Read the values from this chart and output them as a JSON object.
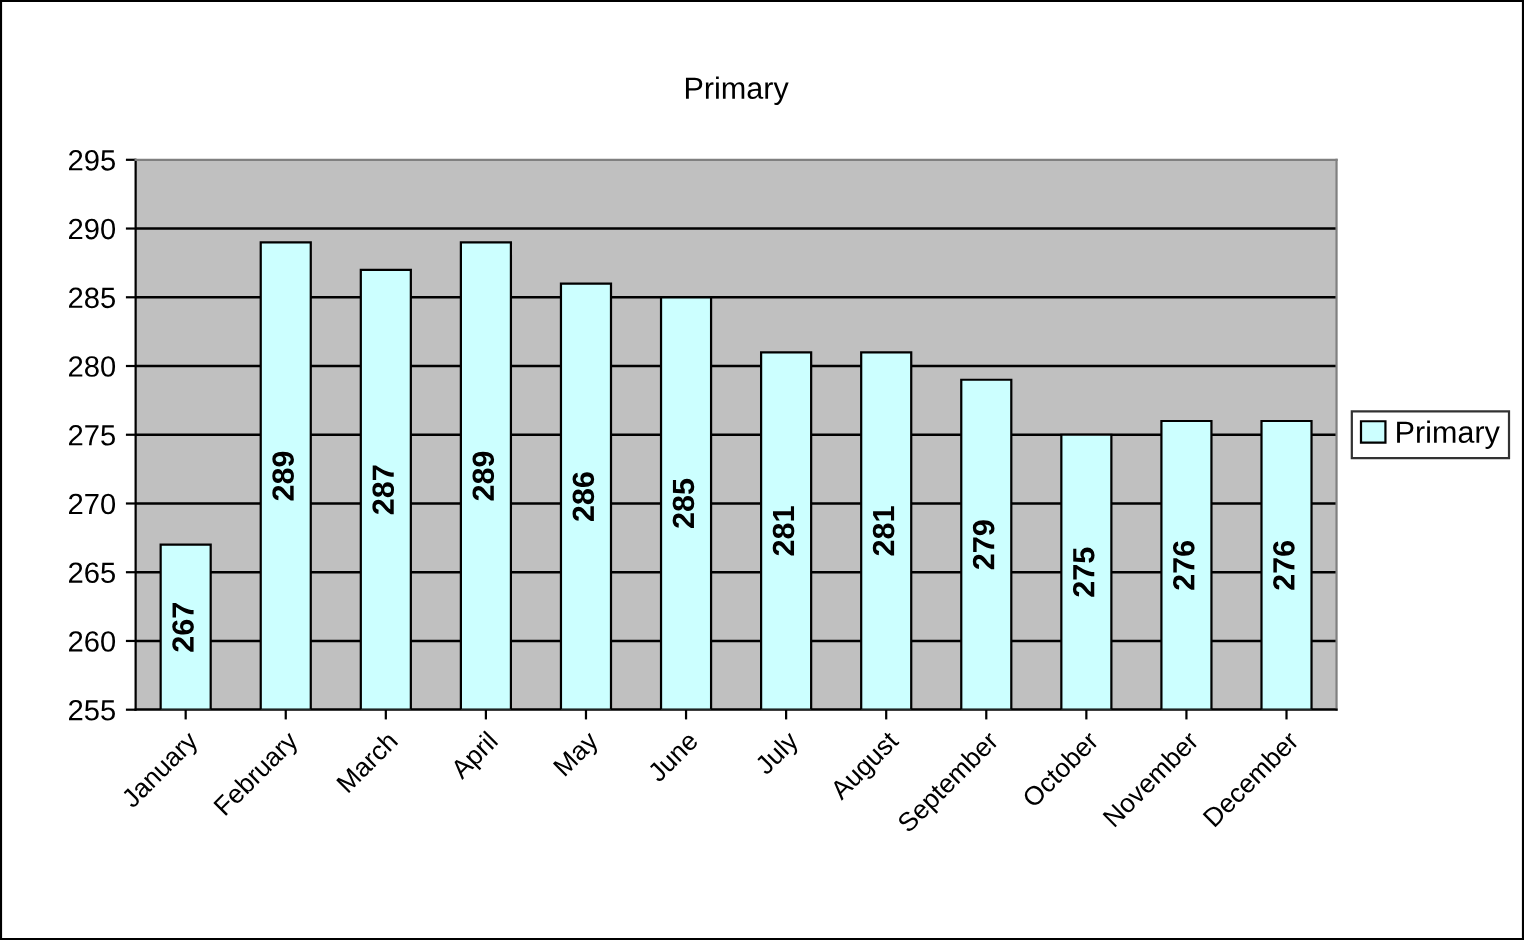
{
  "chart_data": {
    "type": "bar",
    "title": "Primary",
    "categories": [
      "January",
      "February",
      "March",
      "April",
      "May",
      "June",
      "July",
      "August",
      "September",
      "October",
      "November",
      "December"
    ],
    "series": [
      {
        "name": "Primary",
        "color": "#ccffff",
        "values": [
          267,
          289,
          287,
          289,
          286,
          285,
          281,
          281,
          279,
          275,
          276,
          276
        ]
      }
    ],
    "ylim": [
      255,
      295
    ],
    "yticks": [
      255,
      260,
      265,
      270,
      275,
      280,
      285,
      290,
      295
    ],
    "grid": "y",
    "legend": "right",
    "data_labels": true
  }
}
